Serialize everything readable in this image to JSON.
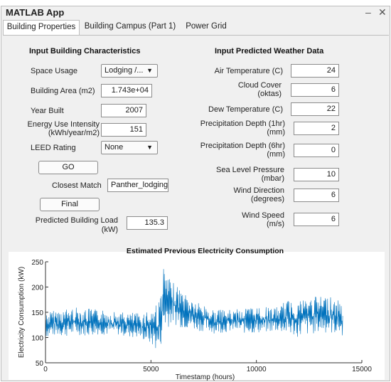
{
  "app": {
    "title": "MATLAB App",
    "minimize_glyph": "–",
    "close_glyph": "✕"
  },
  "tabs": [
    {
      "label": "Building Properties",
      "active": true
    },
    {
      "label": "Building Campus (Part 1)",
      "active": false
    },
    {
      "label": "Power Grid",
      "active": false
    }
  ],
  "building": {
    "header": "Input Building Characteristics",
    "space_usage_label": "Space Usage",
    "space_usage_value": "Lodging /...",
    "area_label": "Building Area (m2)",
    "area_value": "1.743e+04",
    "year_label": "Year Built",
    "year_value": "2007",
    "eui_label_line1": "Energy Use Intensity",
    "eui_label_line2": "(kWh/year/m2)",
    "eui_value": "151",
    "leed_label": "LEED Rating",
    "leed_value": "None",
    "go_button": "GO",
    "closest_match_label": "Closest Match",
    "closest_match_value": "Panther_lodging_",
    "final_button": "Final",
    "predicted_load_label_line1": "Predicted Building Load",
    "predicted_load_label_line2": "(kW)",
    "predicted_load_value": "135.3"
  },
  "weather": {
    "header": "Input Predicted Weather Data",
    "air_temp_label": "Air Temperature (C)",
    "air_temp_value": "24",
    "cloud_label_line1": "Cloud Cover",
    "cloud_label_line2": "(oktas)",
    "cloud_value": "6",
    "dew_label": "Dew Temperature (C)",
    "dew_value": "22",
    "precip1_label_line1": "Precipitation Depth (1hr)",
    "precip1_label_line2": "(mm)",
    "precip1_value": "2",
    "precip6_label_line1": "Precipitation Depth (6hr)",
    "precip6_label_line2": "(mm)",
    "precip6_value": "0",
    "slp_label_line1": "Sea Level Pressure",
    "slp_label_line2": "(mbar)",
    "slp_value": "10",
    "wind_dir_label_line1": "Wind Direction",
    "wind_dir_label_line2": "(degrees)",
    "wind_dir_value": "6",
    "wind_speed_label_line1": "Wind Speed",
    "wind_speed_label_line2": "(m/s)",
    "wind_speed_value": "6"
  },
  "chart_data": {
    "type": "line",
    "title": "Estimated Previous Electricity Consumption",
    "xlabel": "Timestamp (hours)",
    "ylabel": "Electricity Consumption (kW)",
    "xlim": [
      0,
      15000
    ],
    "ylim": [
      50,
      250
    ],
    "xticks": [
      0,
      5000,
      10000,
      15000
    ],
    "yticks": [
      50,
      100,
      150,
      200,
      250
    ],
    "grid": false,
    "line_color": "#0072bd",
    "x": [
      0,
      500,
      1000,
      1500,
      2000,
      2500,
      3000,
      3500,
      4000,
      4500,
      5000,
      5200,
      5400,
      5600,
      5800,
      6000,
      6500,
      7000,
      7500,
      8000,
      8500,
      9000,
      9500,
      10000,
      10500,
      11000,
      11500,
      12000,
      12500,
      13000,
      13500,
      14000,
      14100
    ],
    "y_low": [
      100,
      103,
      102,
      105,
      103,
      106,
      104,
      105,
      100,
      98,
      85,
      75,
      70,
      110,
      120,
      128,
      118,
      115,
      112,
      108,
      110,
      112,
      108,
      108,
      110,
      112,
      105,
      100,
      105,
      110,
      108,
      105,
      100
    ],
    "y_high": [
      150,
      155,
      158,
      160,
      158,
      155,
      155,
      150,
      150,
      148,
      160,
      170,
      175,
      240,
      220,
      210,
      195,
      175,
      165,
      155,
      155,
      155,
      160,
      162,
      160,
      160,
      175,
      178,
      180,
      182,
      185,
      170,
      165
    ]
  }
}
